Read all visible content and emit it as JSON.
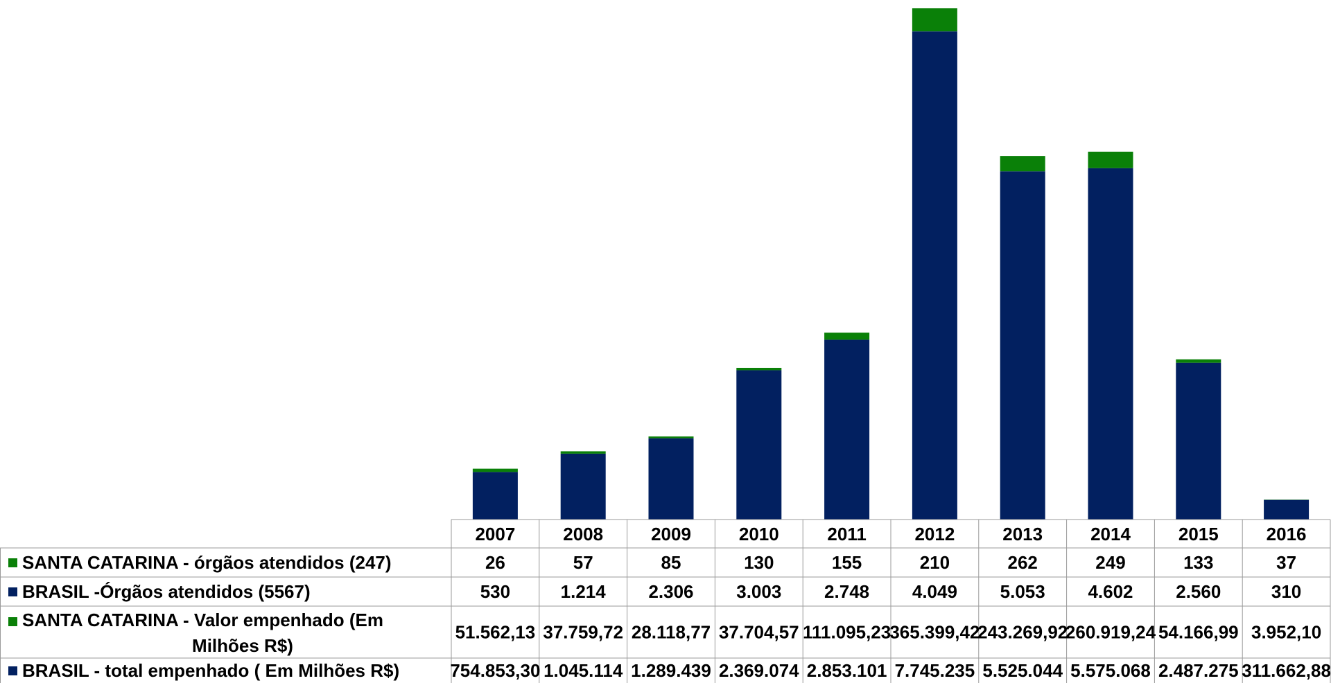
{
  "chart_data": {
    "type": "bar",
    "stacked": true,
    "categories": [
      "2007",
      "2008",
      "2009",
      "2010",
      "2011",
      "2012",
      "2013",
      "2014",
      "2015",
      "2016"
    ],
    "series": [
      {
        "name": "BRASIL - total empenhado ( Em Milhões R$)",
        "color": "#022060",
        "values_text": [
          "754.853,30",
          "1.045.114",
          "1.289.439",
          "2.369.074",
          "2.853.101",
          "7.745.235",
          "5.525.044",
          "5.575.068",
          "2.487.275",
          "311.662,88"
        ],
        "values": [
          754853.3,
          1045114,
          1289439,
          2369074,
          2853101,
          7745235,
          5525044,
          5575068,
          2487275,
          311662.88
        ]
      },
      {
        "name": "SANTA CATARINA - Valor empenhado  (Em Milhões R$)",
        "color": "#0a8008",
        "values_text": [
          "51.562,13",
          "37.759,72",
          "28.118,77",
          "37.704,57",
          "111.095,23",
          "365.399,42",
          "243.269,92",
          "260.919,24",
          "54.166,99",
          "3.952,10"
        ],
        "values": [
          51562.13,
          37759.72,
          28118.77,
          37704.57,
          111095.23,
          365399.42,
          243269.92,
          260919.24,
          54166.99,
          3952.1
        ]
      },
      {
        "name": "BRASIL -Órgãos atendidos (5567)",
        "color": "#022060",
        "values_text": [
          "530",
          "1.214",
          "2.306",
          "3.003",
          "2.748",
          "4.049",
          "5.053",
          "4.602",
          "2.560",
          "310"
        ]
      },
      {
        "name": "SANTA CATARINA - órgãos atendidos (247)",
        "color": "#0a8008",
        "values_text": [
          "26",
          "57",
          "85",
          "130",
          "155",
          "210",
          "262",
          "249",
          "133",
          "37"
        ]
      }
    ],
    "legend": "data-table"
  }
}
